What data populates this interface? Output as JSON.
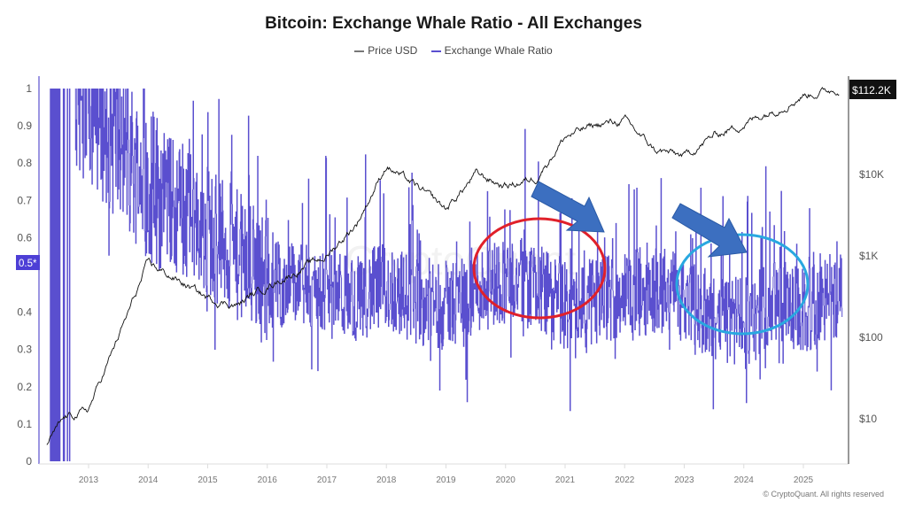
{
  "title": "Bitcoin: Exchange Whale Ratio - All Exchanges",
  "legend": [
    {
      "label": "Price USD",
      "color": "#777777"
    },
    {
      "label": "Exchange Whale Ratio",
      "color": "#5a4fcf"
    }
  ],
  "watermark": "CryptoQuant",
  "copyright": "© CryptoQuant. All rights reserved",
  "left_axis": {
    "ticks": [
      "0",
      "0.1",
      "0.2",
      "0.3",
      "0.4",
      "0.5",
      "0.6",
      "0.7",
      "0.8",
      "0.9",
      "1"
    ],
    "highlight_label": "0.5*"
  },
  "right_axis": {
    "ticks": [
      "$10",
      "$100",
      "$1K",
      "$10K"
    ],
    "current_price_label": "$112.2K"
  },
  "x_axis": {
    "ticks": [
      "2013",
      "2014",
      "2015",
      "2016",
      "2017",
      "2018",
      "2019",
      "2020",
      "2021",
      "2022",
      "2023",
      "2024",
      "2025"
    ]
  },
  "annotations": [
    {
      "type": "ellipse",
      "color": "#e0202a",
      "label": "red-circle-2020-2021"
    },
    {
      "type": "ellipse",
      "color": "#29a8e0",
      "label": "blue-circle-2023-2024"
    },
    {
      "type": "arrow",
      "color": "#3c6fc0",
      "label": "arrow-2020-to-2021"
    },
    {
      "type": "arrow",
      "color": "#3c6fc0",
      "label": "arrow-2023-to-2024"
    }
  ],
  "chart_data": {
    "type": "line",
    "title": "Bitcoin: Exchange Whale Ratio - All Exchanges",
    "xlabel": "",
    "ylabel_left": "Exchange Whale Ratio",
    "ylabel_right": "Price USD (log)",
    "ylim_left": [
      0,
      1
    ],
    "ylim_right_log": [
      3,
      200000
    ],
    "grid": false,
    "legend_position": "top-center",
    "x": [
      2012.3,
      2012.6,
      2013.0,
      2013.5,
      2014.0,
      2014.5,
      2015.0,
      2015.5,
      2016.0,
      2016.5,
      2017.0,
      2017.5,
      2018.0,
      2018.5,
      2019.0,
      2019.5,
      2020.0,
      2020.5,
      2021.0,
      2021.5,
      2022.0,
      2022.5,
      2023.0,
      2023.5,
      2024.0,
      2024.5,
      2025.0,
      2025.6
    ],
    "series": [
      {
        "name": "Exchange Whale Ratio",
        "values": [
          1.0,
          1.0,
          0.97,
          0.85,
          0.75,
          0.68,
          0.62,
          0.55,
          0.48,
          0.47,
          0.45,
          0.44,
          0.47,
          0.43,
          0.42,
          0.46,
          0.49,
          0.47,
          0.41,
          0.43,
          0.45,
          0.46,
          0.44,
          0.38,
          0.37,
          0.43,
          0.4,
          0.44
        ]
      },
      {
        "name": "Price USD",
        "values": [
          5,
          10,
          13,
          100,
          800,
          500,
          300,
          250,
          430,
          650,
          1000,
          2500,
          13000,
          7000,
          3700,
          10000,
          7200,
          9000,
          29000,
          40000,
          46000,
          20000,
          16500,
          30000,
          42000,
          62000,
          95000,
          112200
        ]
      }
    ],
    "current_price": "$112.2K",
    "reference_line_left": 0.5
  }
}
